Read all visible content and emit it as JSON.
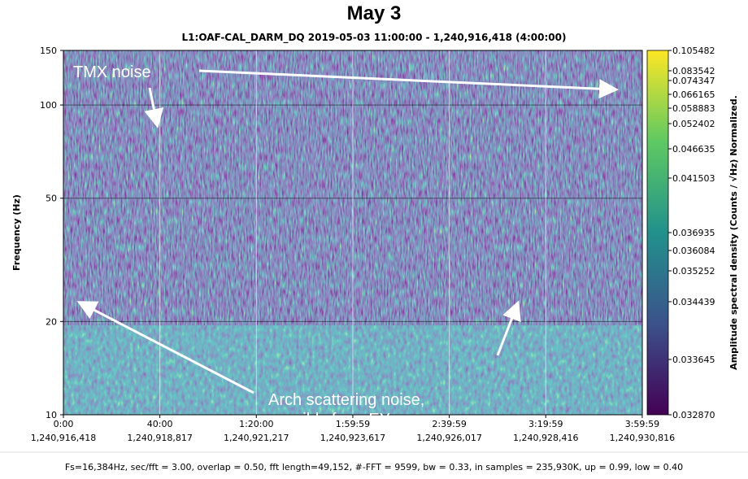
{
  "chart_data": {
    "type": "spectrogram",
    "title": "May 3",
    "subtitle": "L1:OAF-CAL_DARM_DQ 2019-05-03 11:00:00 - 1,240,916,418 (4:00:00)",
    "ylabel": "Frequency (Hz)",
    "colorbar_label": "Amplitude spectral density (Counts / √Hz) Normalized.",
    "footer": "Fs=16,384Hz, sec/fft = 3.00, overlap = 0.50, fft length=49,152, #-FFT = 9599, bw = 0.33, in samples = 235,930K, up = 0.99, low = 0.40",
    "xlim": [
      1240916418,
      1240930818
    ],
    "xticks": [
      {
        "value": 1240916418,
        "label": "1,240,916,418"
      },
      {
        "value": 1240918817,
        "label": "1,240,918,817"
      },
      {
        "value": 1240921217,
        "label": "1,240,921,217"
      },
      {
        "value": 1240923617,
        "label": "1,240,923,617"
      },
      {
        "value": 1240926017,
        "label": "1,240,926,017"
      },
      {
        "value": 1240928416,
        "label": "1,240,928,416"
      },
      {
        "value": 1240930816,
        "label": "1,240,930,816"
      }
    ],
    "xtick_time_labels": [
      "0:00",
      "40:00",
      "1:20:00",
      "1:59:59",
      "2:39:59",
      "3:19:59",
      "3:59:59"
    ],
    "ylim": [
      10,
      150
    ],
    "yticks": [
      10,
      20,
      50,
      100,
      150
    ],
    "y_log_scale": true,
    "grid": true,
    "clim": [
      0.03287,
      0.105482
    ],
    "colorbar_ticks": [
      0.105482,
      0.083542,
      0.074347,
      0.066165,
      0.058883,
      0.052402,
      0.046635,
      0.041503,
      0.036935,
      0.036084,
      0.035252,
      0.034439,
      0.033645,
      {
        "value": 0.03287,
        "label": "0.032870"
      }
    ],
    "annotations": [
      "TMX noise",
      "Arch scattering noise,",
      "possibly from EY"
    ]
  }
}
